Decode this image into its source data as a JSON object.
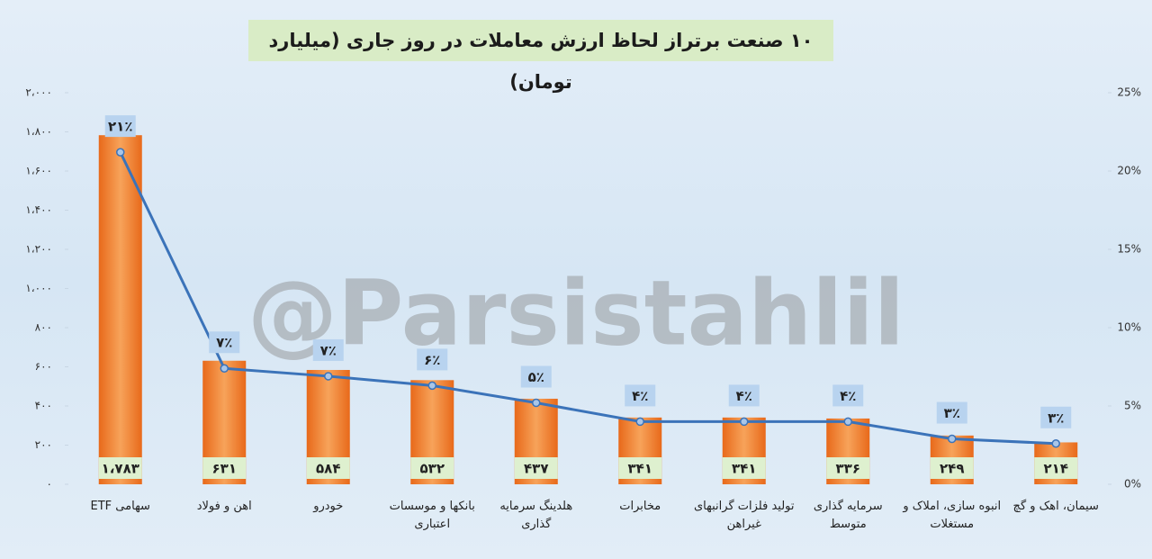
{
  "chart_data": {
    "type": "bar-line",
    "title": "۱۰ صنعت برتراز لحاظ ارزش معاملات در روز جاری (میلیارد تومان)",
    "watermark": "@Parsistahlil",
    "categories": [
      "سهامی ETF",
      "اهن و فولاد",
      "خودرو",
      "بانکها و موسسات اعتباری",
      "هلدینگ سرمایه گذاری",
      "مخابرات",
      "تولید فلزات گرانبهای غیراهن",
      "سرمایه گذاری متوسط",
      "انبوه سازی، املاک و مستغلات",
      "سیمان، اهک و گچ"
    ],
    "series": [
      {
        "type": "bar",
        "color": "#f07d28",
        "values": [
          1783,
          631,
          584,
          532,
          437,
          341,
          341,
          336,
          249,
          214
        ],
        "value_labels": [
          "۱،۷۸۳",
          "۶۳۱",
          "۵۸۴",
          "۵۳۲",
          "۴۳۷",
          "۳۴۱",
          "۳۴۱",
          "۳۳۶",
          "۲۴۹",
          "۲۱۴"
        ]
      },
      {
        "type": "line",
        "axis": "y2",
        "color": "#3b73b9",
        "values": [
          21.2,
          7.4,
          6.9,
          6.3,
          5.2,
          4.0,
          4.0,
          4.0,
          2.9,
          2.6
        ],
        "value_labels": [
          "۲۱٪",
          "۷٪",
          "۷٪",
          "۶٪",
          "۵٪",
          "۴٪",
          "۴٪",
          "۴٪",
          "۳٪",
          "۳٪"
        ]
      }
    ],
    "ylim": [
      0,
      2000
    ],
    "yticks": [
      {
        "value": 0,
        "label": "۰"
      },
      {
        "value": 200,
        "label": "۲۰۰"
      },
      {
        "value": 400,
        "label": "۴۰۰"
      },
      {
        "value": 600,
        "label": "۶۰۰"
      },
      {
        "value": 800,
        "label": "۸۰۰"
      },
      {
        "value": 1000,
        "label": "۱،۰۰۰"
      },
      {
        "value": 1200,
        "label": "۱،۲۰۰"
      },
      {
        "value": 1400,
        "label": "۱،۴۰۰"
      },
      {
        "value": 1600,
        "label": "۱،۶۰۰"
      },
      {
        "value": 1800,
        "label": "۱،۸۰۰"
      },
      {
        "value": 2000,
        "label": "۲،۰۰۰"
      }
    ],
    "y2lim": [
      0,
      25
    ],
    "y2ticks": [
      {
        "value": 0,
        "label": "0%"
      },
      {
        "value": 5,
        "label": "5%"
      },
      {
        "value": 10,
        "label": "10%"
      },
      {
        "value": 15,
        "label": "15%"
      },
      {
        "value": 20,
        "label": "20%"
      },
      {
        "value": 25,
        "label": "25%"
      }
    ],
    "grid": false
  }
}
